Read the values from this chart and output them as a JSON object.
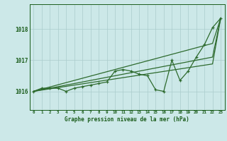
{
  "title": "Graphe pression niveau de la mer (hPa)",
  "x_labels": [
    "0",
    "1",
    "2",
    "3",
    "4",
    "5",
    "6",
    "7",
    "8",
    "9",
    "10",
    "11",
    "12",
    "13",
    "14",
    "15",
    "16",
    "17",
    "18",
    "19",
    "20",
    "21",
    "22",
    "23"
  ],
  "x_values": [
    0,
    1,
    2,
    3,
    4,
    5,
    6,
    7,
    8,
    9,
    10,
    11,
    12,
    13,
    14,
    15,
    16,
    17,
    18,
    19,
    20,
    21,
    22,
    23
  ],
  "ylim": [
    1015.4,
    1018.8
  ],
  "yticks": [
    1016,
    1017,
    1018
  ],
  "line_measured": [
    1016.0,
    1016.1,
    1016.1,
    1016.1,
    1016.0,
    1016.1,
    1016.15,
    1016.2,
    1016.25,
    1016.3,
    1016.65,
    1016.7,
    1016.65,
    1016.55,
    1016.5,
    1016.05,
    1016.0,
    1017.0,
    1016.35,
    1016.65,
    1017.1,
    1017.5,
    1018.05,
    1018.35
  ],
  "line_trend1": [
    1016.0,
    1016.07,
    1016.14,
    1016.21,
    1016.28,
    1016.35,
    1016.42,
    1016.49,
    1016.56,
    1016.63,
    1016.7,
    1016.77,
    1016.84,
    1016.91,
    1016.98,
    1017.05,
    1017.12,
    1017.19,
    1017.26,
    1017.33,
    1017.4,
    1017.47,
    1017.54,
    1018.35
  ],
  "line_trend2": [
    1016.0,
    1016.05,
    1016.1,
    1016.15,
    1016.2,
    1016.25,
    1016.3,
    1016.35,
    1016.4,
    1016.45,
    1016.5,
    1016.55,
    1016.6,
    1016.65,
    1016.7,
    1016.75,
    1016.8,
    1016.85,
    1016.9,
    1016.95,
    1017.0,
    1017.05,
    1017.1,
    1018.35
  ],
  "line_trend3": [
    1016.0,
    1016.04,
    1016.08,
    1016.12,
    1016.16,
    1016.2,
    1016.24,
    1016.28,
    1016.32,
    1016.36,
    1016.4,
    1016.44,
    1016.48,
    1016.52,
    1016.56,
    1016.6,
    1016.64,
    1016.68,
    1016.72,
    1016.76,
    1016.8,
    1016.84,
    1016.88,
    1018.35
  ],
  "line_color": "#2d6a2d",
  "bg_color": "#cce8e8",
  "grid_color": "#aacccc",
  "label_color": "#1a5c1a"
}
